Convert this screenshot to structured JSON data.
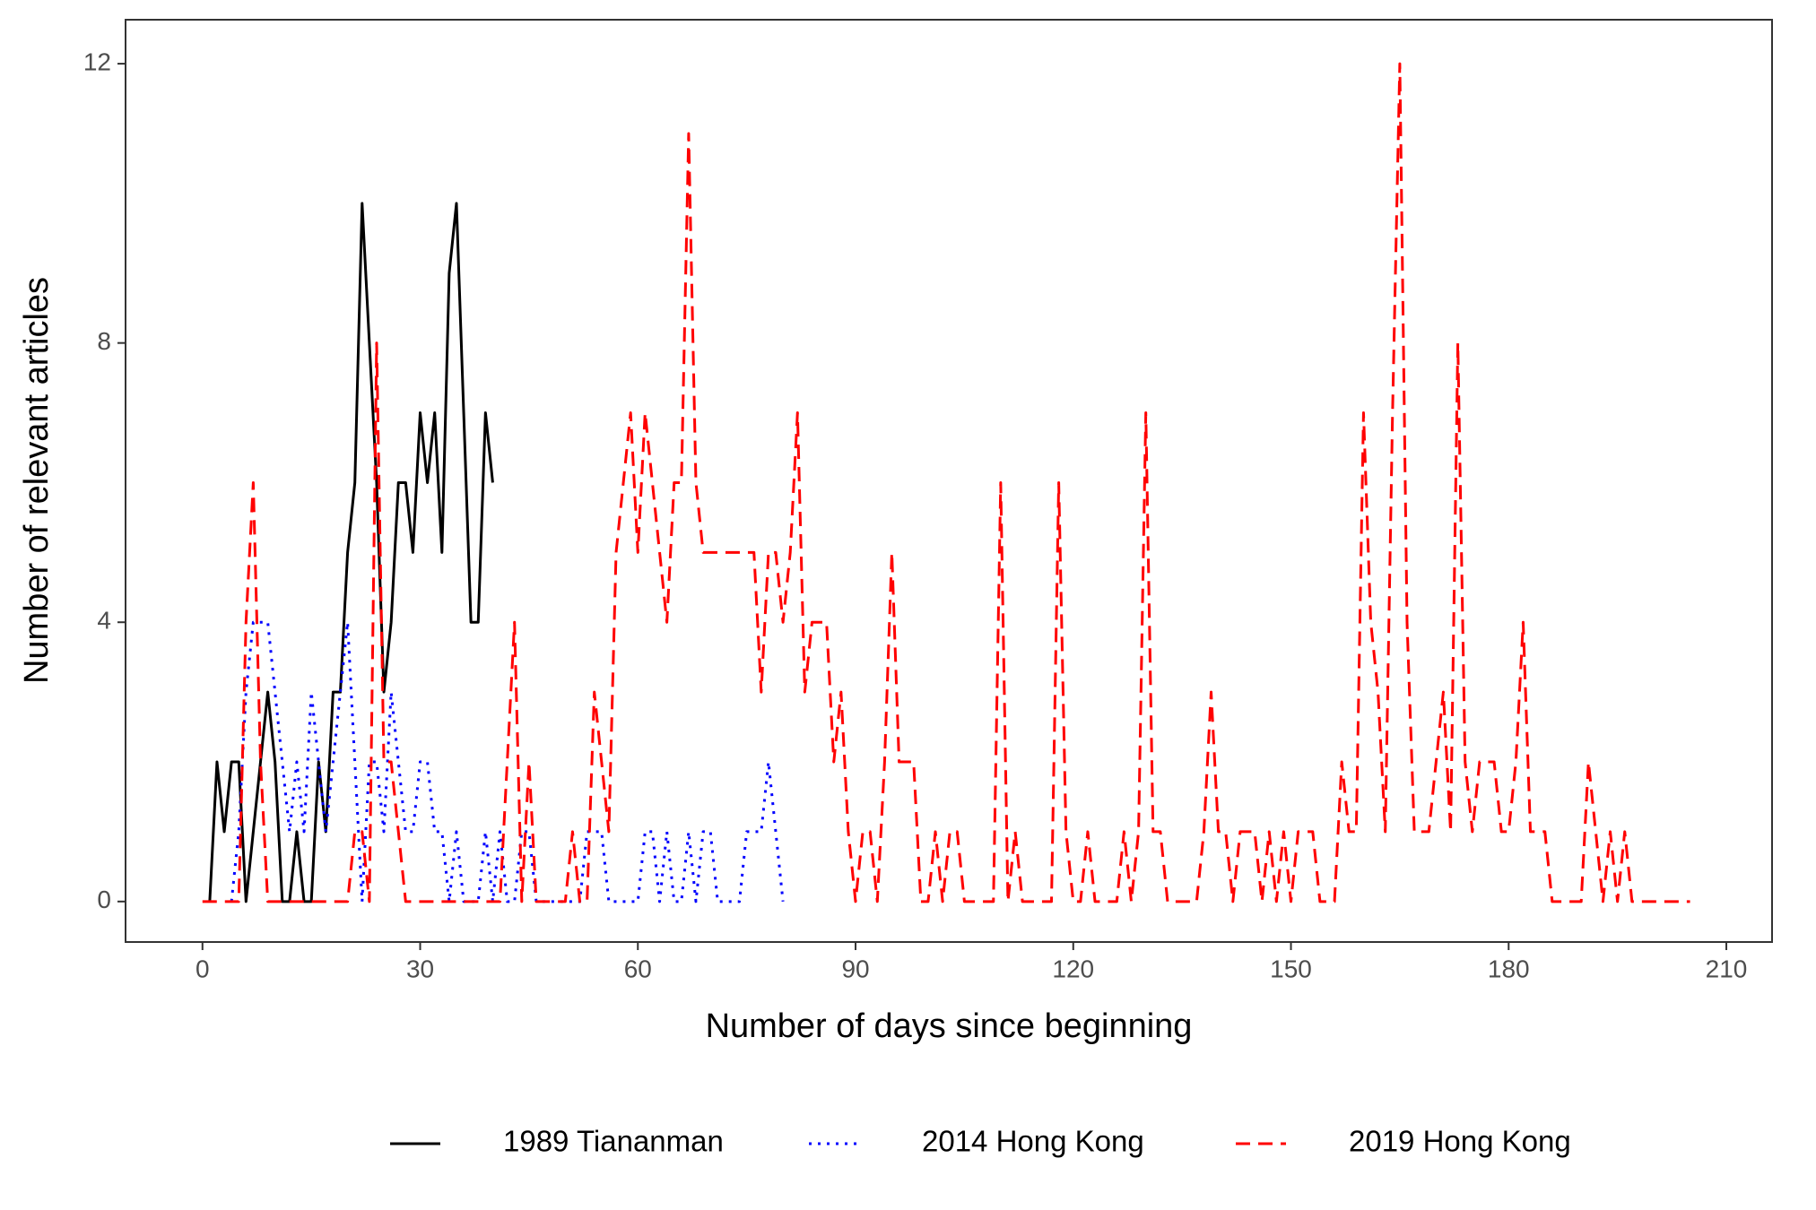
{
  "chart_data": {
    "type": "line",
    "xlabel": "Number of days since beginning",
    "ylabel": "Number of relevant articles",
    "xlim": [
      -10.6,
      216.3
    ],
    "ylim": [
      -0.58,
      12.63
    ],
    "xticks": [
      0,
      30,
      60,
      90,
      120,
      150,
      180,
      210
    ],
    "yticks": [
      0,
      4,
      8,
      12
    ],
    "grid": false,
    "legend": "bottom",
    "series": [
      {
        "name": "1989 Tiananman",
        "color": "#000000",
        "line_style": "solid",
        "x": [
          1,
          2,
          3,
          4,
          5,
          6,
          7,
          8,
          9,
          10,
          11,
          12,
          13,
          14,
          15,
          16,
          17,
          18,
          19,
          20,
          21,
          22,
          23,
          24,
          25,
          26,
          27,
          28,
          29,
          30,
          31,
          32,
          33,
          34,
          35,
          36,
          37,
          38,
          39,
          40
        ],
        "values": [
          0,
          2,
          1,
          2,
          2,
          0,
          1,
          2,
          3,
          2,
          0,
          0,
          1,
          0,
          0,
          2,
          1,
          3,
          3,
          5,
          6,
          10,
          8,
          6,
          3,
          4,
          6,
          6,
          5,
          7,
          6,
          7,
          5,
          9,
          10,
          7,
          4,
          4,
          7,
          6
        ]
      },
      {
        "name": "2014 Hong Kong",
        "color": "#0000ff",
        "line_style": "dotted",
        "x": [
          4,
          5,
          6,
          7,
          8,
          9,
          10,
          11,
          12,
          13,
          14,
          15,
          16,
          17,
          18,
          19,
          20,
          21,
          22,
          23,
          24,
          25,
          26,
          27,
          28,
          29,
          30,
          31,
          32,
          33,
          34,
          35,
          36,
          37,
          38,
          39,
          40,
          41,
          42,
          43,
          44,
          45,
          46,
          47,
          48,
          49,
          50,
          51,
          52,
          53,
          54,
          55,
          56,
          57,
          58,
          59,
          60,
          61,
          62,
          63,
          64,
          65,
          66,
          67,
          68,
          69,
          70,
          71,
          72,
          73,
          74,
          75,
          76,
          77,
          78,
          79,
          80
        ],
        "values": [
          0,
          1,
          3,
          4,
          4,
          4,
          3,
          2,
          1,
          2,
          1,
          3,
          2,
          1,
          2,
          3,
          4,
          2,
          0,
          2,
          2,
          1,
          3,
          2,
          1,
          1,
          2,
          2,
          1,
          1,
          0,
          1,
          0,
          0,
          0,
          1,
          0,
          1,
          0,
          0,
          1,
          1,
          0,
          0,
          0,
          0,
          0,
          0,
          0,
          1,
          1,
          1,
          0,
          0,
          0,
          0,
          0,
          1,
          1,
          0,
          1,
          0,
          0,
          1,
          0,
          1,
          1,
          0,
          0,
          0,
          0,
          1,
          1,
          1,
          2,
          1,
          0
        ]
      },
      {
        "name": "2019 Hong Kong",
        "color": "#ff0000",
        "line_style": "dashed",
        "x": [
          0,
          1,
          2,
          3,
          4,
          5,
          6,
          7,
          8,
          9,
          10,
          11,
          12,
          13,
          14,
          15,
          16,
          17,
          18,
          19,
          20,
          21,
          22,
          23,
          24,
          25,
          26,
          27,
          28,
          29,
          30,
          31,
          32,
          33,
          34,
          35,
          36,
          37,
          38,
          39,
          40,
          41,
          42,
          43,
          44,
          45,
          46,
          47,
          48,
          49,
          50,
          51,
          52,
          53,
          54,
          55,
          56,
          57,
          58,
          59,
          60,
          61,
          62,
          63,
          64,
          65,
          66,
          67,
          68,
          69,
          70,
          71,
          72,
          73,
          74,
          75,
          76,
          77,
          78,
          79,
          80,
          81,
          82,
          83,
          84,
          85,
          86,
          87,
          88,
          89,
          90,
          91,
          92,
          93,
          94,
          95,
          96,
          97,
          98,
          99,
          100,
          101,
          102,
          103,
          104,
          105,
          106,
          107,
          108,
          109,
          110,
          111,
          112,
          113,
          114,
          115,
          116,
          117,
          118,
          119,
          120,
          121,
          122,
          123,
          124,
          125,
          126,
          127,
          128,
          129,
          130,
          131,
          132,
          133,
          134,
          135,
          136,
          137,
          138,
          139,
          140,
          141,
          142,
          143,
          144,
          145,
          146,
          147,
          148,
          149,
          150,
          151,
          152,
          153,
          154,
          155,
          156,
          157,
          158,
          159,
          160,
          161,
          162,
          163,
          164,
          165,
          166,
          167,
          168,
          169,
          170,
          171,
          172,
          173,
          174,
          175,
          176,
          177,
          178,
          179,
          180,
          181,
          182,
          183,
          184,
          185,
          186,
          187,
          188,
          189,
          190,
          191,
          192,
          193,
          194,
          195,
          196,
          197,
          198,
          199,
          200,
          201,
          202,
          203,
          204,
          205
        ],
        "values": [
          0,
          0,
          0,
          0,
          0,
          0,
          4,
          6,
          2,
          0,
          0,
          0,
          0,
          0,
          0,
          0,
          0,
          0,
          0,
          0,
          0,
          1,
          1,
          0,
          8,
          2,
          2,
          1,
          0,
          0,
          0,
          0,
          0,
          0,
          0,
          0,
          0,
          0,
          0,
          0,
          0,
          0,
          2,
          4,
          0,
          2,
          0,
          0,
          0,
          0,
          0,
          1,
          0,
          0,
          3,
          2,
          1,
          5,
          6,
          7,
          5,
          7,
          6,
          5,
          4,
          6,
          6,
          11,
          6,
          5,
          5,
          5,
          5,
          5,
          5,
          5,
          5,
          3,
          5,
          5,
          4,
          5,
          7,
          3,
          4,
          4,
          4,
          2,
          3,
          1,
          0,
          1,
          1,
          0,
          2,
          5,
          2,
          2,
          2,
          0,
          0,
          1,
          0,
          1,
          1,
          0,
          0,
          0,
          0,
          0,
          6,
          0,
          1,
          0,
          0,
          0,
          0,
          0,
          6,
          1,
          0,
          0,
          1,
          0,
          0,
          0,
          0,
          1,
          0,
          1,
          7,
          1,
          1,
          0,
          0,
          0,
          0,
          0,
          1,
          3,
          1,
          1,
          0,
          1,
          1,
          1,
          0,
          1,
          0,
          1,
          0,
          1,
          1,
          1,
          0,
          0,
          0,
          2,
          1,
          1,
          7,
          4,
          3,
          1,
          7,
          12,
          4,
          1,
          1,
          1,
          2,
          3,
          1,
          8,
          2,
          1,
          2,
          2,
          2,
          1,
          1,
          2,
          4,
          1,
          1,
          1,
          0,
          0,
          0,
          0,
          0,
          2,
          1,
          0,
          1,
          0,
          1,
          0,
          0,
          0,
          0,
          0,
          0,
          0,
          0,
          0
        ]
      }
    ]
  }
}
